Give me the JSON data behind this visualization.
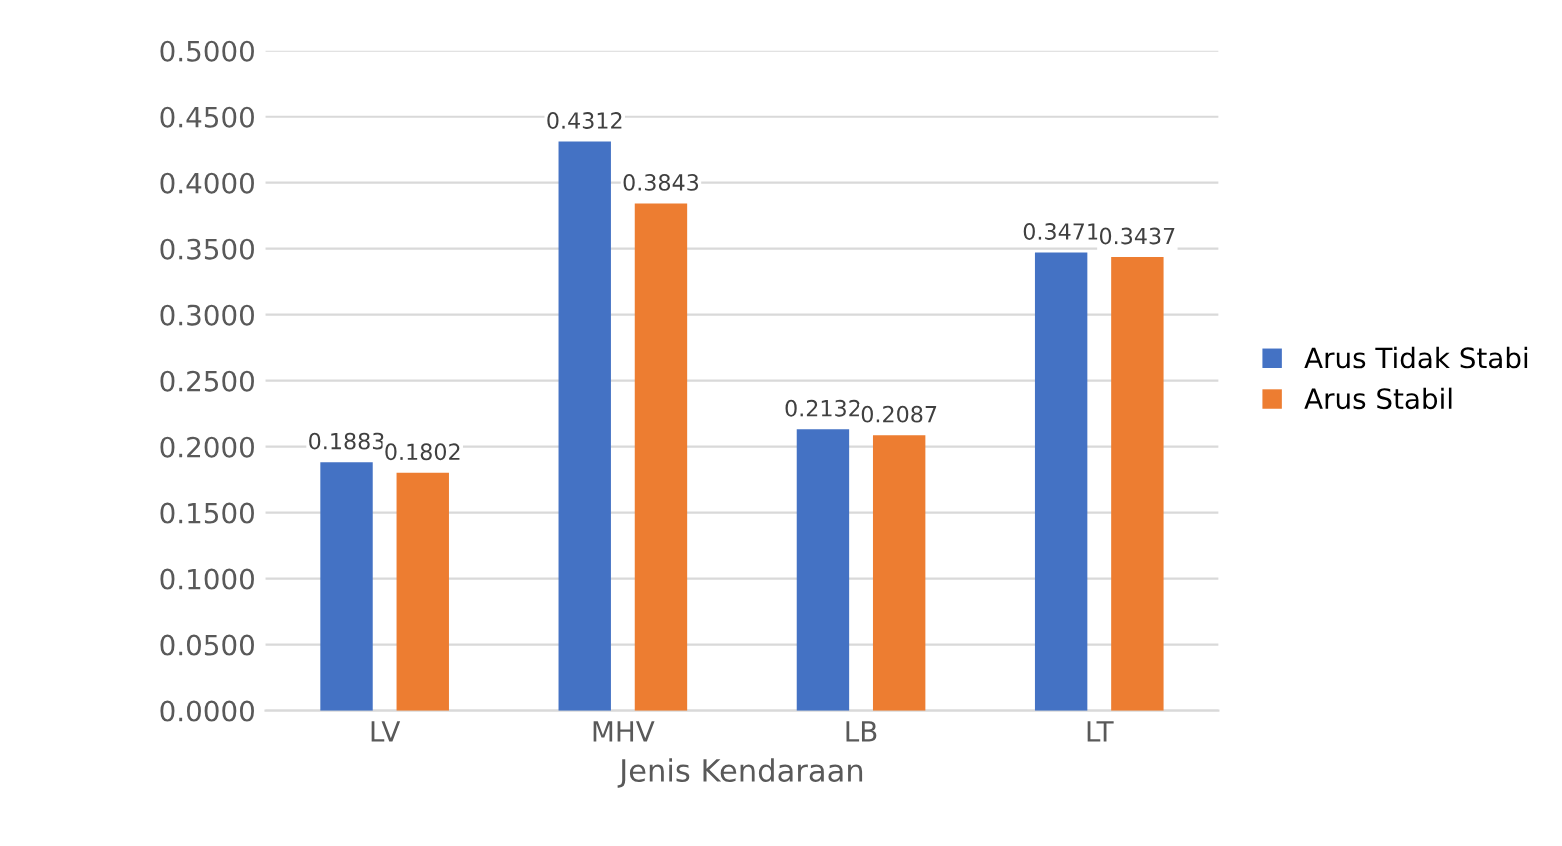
{
  "chart_data": {
    "type": "bar",
    "xlabel": "Jenis Kendaraan",
    "categories": [
      "LV",
      "MHV",
      "LB",
      "LT"
    ],
    "series": [
      {
        "name": "Arus Tidak Stabi",
        "color": "#4472c4",
        "values": [
          0.1883,
          0.4312,
          0.2132,
          0.3471
        ]
      },
      {
        "name": "Arus Stabil",
        "color": "#ed7d31",
        "values": [
          0.1802,
          0.3843,
          0.2087,
          0.3437
        ]
      }
    ],
    "ylim": [
      0,
      0.5
    ],
    "yticks": [
      {
        "value": 0,
        "label": "0.0000"
      },
      {
        "value": 0.05,
        "label": "0.0500"
      },
      {
        "value": 0.1,
        "label": "0.1000"
      },
      {
        "value": 0.15,
        "label": "0.1500"
      },
      {
        "value": 0.2,
        "label": "0.2000"
      },
      {
        "value": 0.25,
        "label": "0.2500"
      },
      {
        "value": 0.3,
        "label": "0.3000"
      },
      {
        "value": 0.35,
        "label": "0.3500"
      },
      {
        "value": 0.4,
        "label": "0.4000"
      },
      {
        "value": 0.45,
        "label": "0.4500"
      },
      {
        "value": 0.5,
        "label": "0.5000"
      }
    ],
    "grid": "y",
    "legend": "right",
    "data_labels": true
  }
}
